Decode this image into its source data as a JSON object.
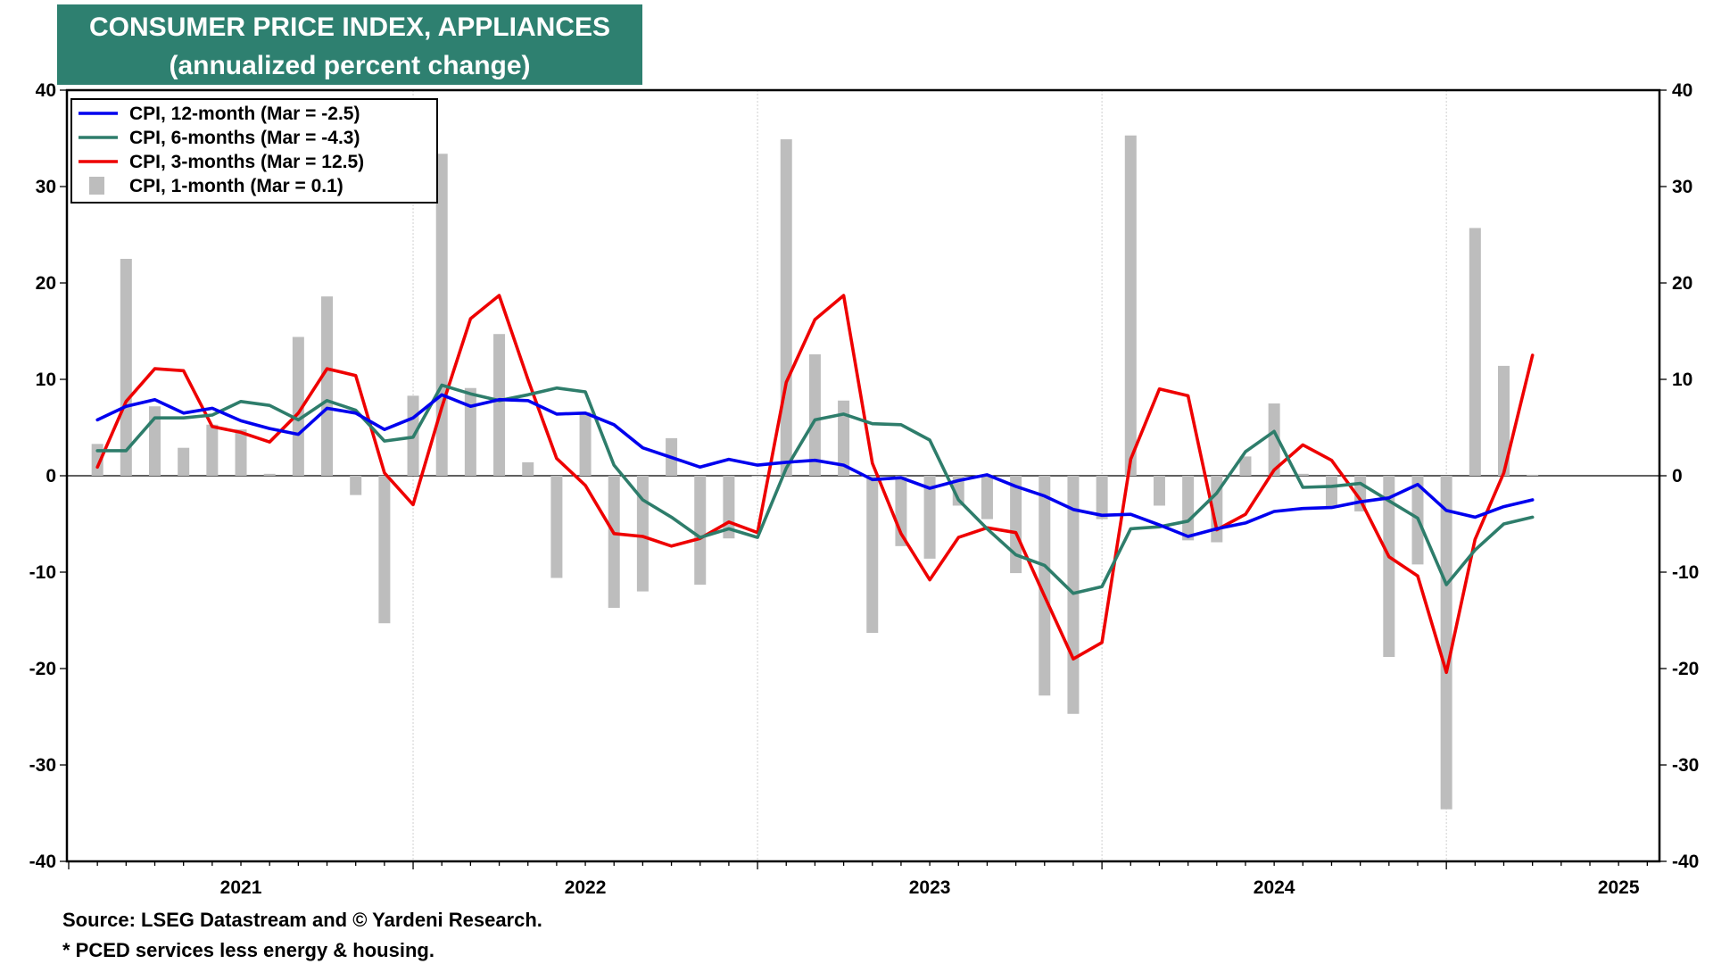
{
  "chart_data": {
    "type": "line",
    "title": "CONSUMER PRICE INDEX, APPLIANCES",
    "subtitle": "(annualized percent change)",
    "ylim": [
      -40,
      40
    ],
    "yticks": [
      -40,
      -30,
      -20,
      -10,
      0,
      10,
      20,
      30,
      40
    ],
    "year_labels": [
      "2021",
      "2022",
      "2023",
      "2024",
      "2025"
    ],
    "x_start": "2020-12",
    "grid": "vertical-year-lines",
    "legend_position": "top-left",
    "x": [
      "2021-01",
      "2021-02",
      "2021-03",
      "2021-04",
      "2021-05",
      "2021-06",
      "2021-07",
      "2021-08",
      "2021-09",
      "2021-10",
      "2021-11",
      "2021-12",
      "2022-01",
      "2022-02",
      "2022-03",
      "2022-04",
      "2022-05",
      "2022-06",
      "2022-07",
      "2022-08",
      "2022-09",
      "2022-10",
      "2022-11",
      "2022-12",
      "2023-01",
      "2023-02",
      "2023-03",
      "2023-04",
      "2023-05",
      "2023-06",
      "2023-07",
      "2023-08",
      "2023-09",
      "2023-10",
      "2023-11",
      "2023-12",
      "2024-01",
      "2024-02",
      "2024-03",
      "2024-04",
      "2024-05",
      "2024-06",
      "2024-07",
      "2024-08",
      "2024-09",
      "2024-10",
      "2024-11",
      "2024-12",
      "2025-01",
      "2025-02",
      "2025-03"
    ],
    "series": [
      {
        "name": "CPI, 12-month (Mar = -2.5)",
        "kind": "line",
        "color": "#0000ee",
        "values": [
          5.8,
          7.2,
          7.9,
          6.5,
          7.0,
          5.7,
          4.9,
          4.3,
          7.0,
          6.5,
          4.8,
          6.0,
          8.4,
          7.2,
          7.9,
          7.8,
          6.4,
          6.5,
          5.3,
          2.9,
          1.9,
          0.9,
          1.7,
          1.1,
          1.4,
          1.6,
          1.1,
          -0.4,
          -0.2,
          -1.3,
          -0.5,
          0.1,
          -1.1,
          -2.1,
          -3.5,
          -4.1,
          -4.0,
          -5.1,
          -6.3,
          -5.5,
          -4.9,
          -3.7,
          -3.4,
          -3.3,
          -2.7,
          -2.3,
          -0.9,
          -3.6,
          -4.3,
          -3.2,
          -2.5
        ]
      },
      {
        "name": "CPI, 6-months (Mar = -4.3)",
        "kind": "line",
        "color": "#2e7d6b",
        "values": [
          2.6,
          2.6,
          6.0,
          6.0,
          6.3,
          7.7,
          7.3,
          5.8,
          7.8,
          6.8,
          3.6,
          4.0,
          9.4,
          8.5,
          7.8,
          8.4,
          9.1,
          8.7,
          1.1,
          -2.5,
          -4.3,
          -6.4,
          -5.5,
          -6.4,
          0.8,
          5.8,
          6.4,
          5.4,
          5.3,
          3.7,
          -2.5,
          -5.5,
          -8.2,
          -9.3,
          -12.2,
          -11.5,
          -5.5,
          -5.3,
          -4.7,
          -1.8,
          2.5,
          4.6,
          -1.2,
          -1.1,
          -0.8,
          -2.6,
          -4.4,
          -11.3,
          -7.7,
          -5.0,
          -4.3
        ]
      },
      {
        "name": "CPI, 3-months (Mar = 12.5)",
        "kind": "line",
        "color": "#ee0000",
        "values": [
          0.9,
          7.7,
          11.1,
          10.9,
          5.1,
          4.5,
          3.5,
          6.5,
          11.1,
          10.4,
          0.3,
          -3.0,
          7.1,
          16.3,
          18.7,
          10.0,
          1.8,
          -1.0,
          -6.0,
          -6.3,
          -7.3,
          -6.5,
          -4.8,
          -5.9,
          9.7,
          16.2,
          18.7,
          1.3,
          -6.0,
          -10.8,
          -6.4,
          -5.4,
          -5.9,
          -12.5,
          -19.0,
          -17.3,
          1.7,
          9.0,
          8.3,
          -5.6,
          -4.0,
          0.6,
          3.2,
          1.6,
          -2.5,
          -8.4,
          -10.4,
          -20.4,
          -6.6,
          0.3,
          12.5
        ]
      },
      {
        "name": "CPI, 1-month (Mar = 0.1)",
        "kind": "bar",
        "color": "#bdbdbd",
        "values": [
          3.3,
          22.5,
          7.2,
          2.9,
          5.3,
          4.8,
          0.2,
          14.4,
          18.6,
          -2.0,
          -15.3,
          8.3,
          33.4,
          9.1,
          14.7,
          1.4,
          -10.6,
          6.6,
          -13.7,
          -12.0,
          3.9,
          -11.3,
          -6.5,
          -0.1,
          34.9,
          12.6,
          7.8,
          -16.3,
          -7.3,
          -8.6,
          -3.1,
          -4.5,
          -10.1,
          -22.8,
          -24.7,
          -4.5,
          35.3,
          -3.1,
          -6.7,
          -6.9,
          2.0,
          7.5,
          0.2,
          -3.2,
          -3.7,
          -18.8,
          -9.2,
          -34.6,
          25.7,
          11.4,
          0.1
        ]
      }
    ]
  },
  "footnotes": {
    "source": "Source: LSEG Datastream and © Yardeni Research.",
    "note": "* PCED services less energy & housing."
  }
}
